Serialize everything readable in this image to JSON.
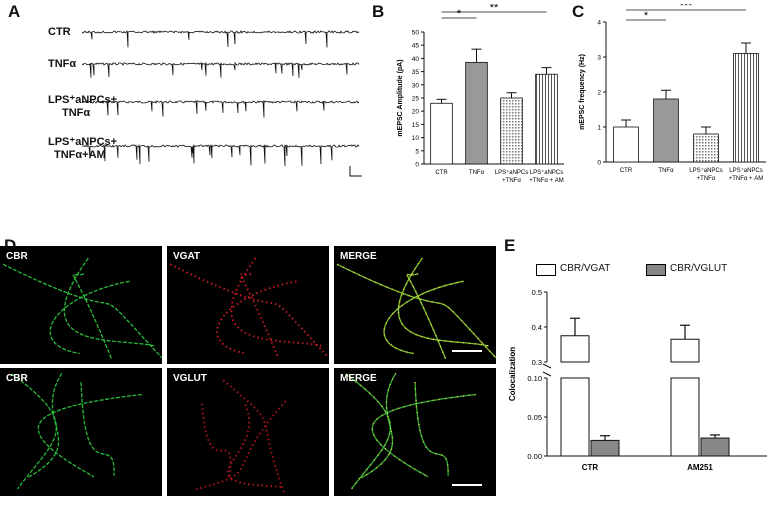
{
  "panels": {
    "A": "A",
    "B": "B",
    "C": "C",
    "D": "D",
    "E": "E"
  },
  "traces": {
    "labels": [
      [
        "CTR"
      ],
      [
        "TNFα"
      ],
      [
        "LPS⁺aNPCs+",
        "TNFα"
      ],
      [
        "LPS⁺aNPCs+",
        "TNFα+AM"
      ]
    ]
  },
  "chart_b": {
    "type": "bar",
    "ylabel": "mEPSC Amplitude (pA)",
    "ylim": [
      0,
      50
    ],
    "yticks": [
      0,
      5,
      10,
      15,
      20,
      25,
      30,
      35,
      40,
      45,
      50
    ],
    "categories": [
      [
        "CTR"
      ],
      [
        "TNFα"
      ],
      [
        "LPS⁺aNPCs",
        "+TNFα"
      ],
      [
        "LPS⁺aNPCs",
        "+TNFα + AM"
      ]
    ],
    "values": [
      23,
      38.5,
      25,
      34
    ],
    "errors": [
      1.5,
      5,
      2,
      2.5
    ],
    "significance": [
      {
        "from": 0,
        "to": 1,
        "label": "*"
      },
      {
        "from": 0,
        "to": 3,
        "label": "**"
      }
    ]
  },
  "chart_c": {
    "type": "bar",
    "ylabel": "mEPSC frequency (Hz)",
    "ylim": [
      0,
      4
    ],
    "yticks": [
      0,
      1,
      2,
      3,
      4
    ],
    "categories": [
      [
        "CTR"
      ],
      [
        "TNFα"
      ],
      [
        "LPS⁺aNPCs",
        "+TNFα"
      ],
      [
        "LPS⁺aNPCs",
        "+TNFα + AM"
      ]
    ],
    "values": [
      1.0,
      1.8,
      0.8,
      3.1
    ],
    "errors": [
      0.2,
      0.25,
      0.2,
      0.3
    ],
    "significance": [
      {
        "from": 0,
        "to": 1,
        "label": "*"
      },
      {
        "from": 0,
        "to": 3,
        "label": "***"
      }
    ]
  },
  "micrographs": {
    "row1": [
      "CBR",
      "VGAT",
      "MERGE"
    ],
    "row2": [
      "CBR",
      "VGLUT",
      "MERGE"
    ]
  },
  "chart_data": {
    "type": "bar",
    "ylabel": "Colocalization",
    "categories": [
      "CTR",
      "AM251"
    ],
    "series": [
      {
        "name": "CBR/VGAT",
        "values": [
          0.375,
          0.365
        ],
        "errors": [
          0.05,
          0.04
        ]
      },
      {
        "name": "CBR/VGLUT",
        "values": [
          0.02,
          0.023
        ],
        "errors": [
          0.006,
          0.004
        ]
      }
    ],
    "y_axis_break": true,
    "upper_range": [
      0.3,
      0.5
    ],
    "upper_ticks": [
      "0.3",
      "0.4",
      "0.5"
    ],
    "lower_range": [
      0,
      0.1
    ],
    "lower_ticks": [
      "0.00",
      "0.05",
      "0.10"
    ],
    "legend_position": "top",
    "colors": {
      "CBR/VGAT": "#ffffff",
      "CBR/VGLUT": "#888888"
    }
  }
}
